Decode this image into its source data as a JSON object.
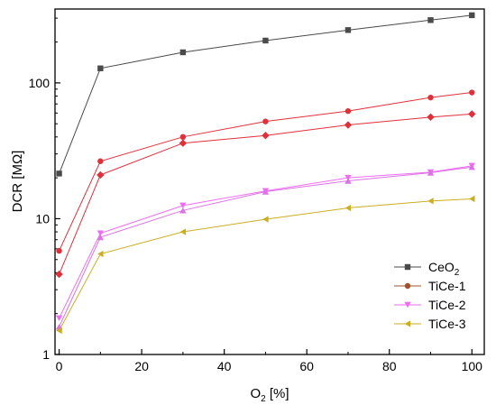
{
  "chart_data": {
    "type": "line",
    "xlabel": "O",
    "xlabel_sub": "2",
    "xlabel_unit": " [%]",
    "ylabel": "DCR [MΩ]",
    "xlim": [
      -1,
      103
    ],
    "ylim": [
      1,
      350
    ],
    "yscale": "log",
    "grid": false,
    "legend_position": "bottom-right",
    "x_ticks": [
      0,
      20,
      40,
      60,
      80,
      100
    ],
    "x_tick_labels": [
      "0",
      "20",
      "40",
      "60",
      "80",
      "100"
    ],
    "y_ticks": [
      1,
      10,
      100
    ],
    "y_tick_labels": [
      "1",
      "10",
      "100"
    ],
    "series": [
      {
        "name": "CeO",
        "name_sub": "2",
        "color": "#4a4a4a",
        "marker": "square",
        "x": [
          0,
          10,
          30,
          50,
          70,
          90,
          100
        ],
        "y": [
          21.5,
          128,
          168,
          205,
          245,
          290,
          315
        ]
      },
      {
        "name": "TiCe-1",
        "color": "#e0303a",
        "marker": "circle",
        "x": [
          0,
          10,
          30,
          50,
          70,
          90,
          100
        ],
        "y": [
          5.8,
          26.5,
          40,
          52,
          62,
          78,
          85
        ]
      },
      {
        "name": "",
        "color": "#e0303a",
        "marker": "diamond",
        "x": [
          0,
          10,
          30,
          50,
          70,
          90,
          100
        ],
        "y": [
          3.9,
          21,
          36,
          41,
          49,
          56,
          59
        ]
      },
      {
        "name": "TiCe-2",
        "color": "#ee6ef2",
        "marker": "triangle-down",
        "x": [
          0,
          10,
          30,
          50,
          70,
          90,
          100
        ],
        "y": [
          1.85,
          7.8,
          12.5,
          16,
          20,
          22,
          24.5
        ]
      },
      {
        "name": "",
        "color": "#dc72e6",
        "marker": "triangle-up",
        "x": [
          0,
          10,
          30,
          50,
          70,
          90,
          100
        ],
        "y": [
          1.6,
          7.3,
          11.5,
          15.8,
          19,
          21.8,
          24
        ]
      },
      {
        "name": "TiCe-3",
        "color": "#c9ae22",
        "marker": "triangle-left",
        "x": [
          0,
          10,
          30,
          50,
          70,
          90,
          100
        ],
        "y": [
          1.5,
          5.5,
          8,
          9.9,
          12,
          13.5,
          14
        ]
      }
    ],
    "legend": [
      {
        "label": "CeO",
        "sub": "2",
        "color": "#4a4a4a",
        "marker": "square"
      },
      {
        "label": "TiCe-1",
        "sub": "",
        "color": "#a0522d",
        "marker": "circle"
      },
      {
        "label": "TiCe-2",
        "sub": "",
        "color": "#ee6ef2",
        "marker": "triangle-down"
      },
      {
        "label": "TiCe-3",
        "sub": "",
        "color": "#c9ae22",
        "marker": "triangle-left"
      }
    ]
  }
}
